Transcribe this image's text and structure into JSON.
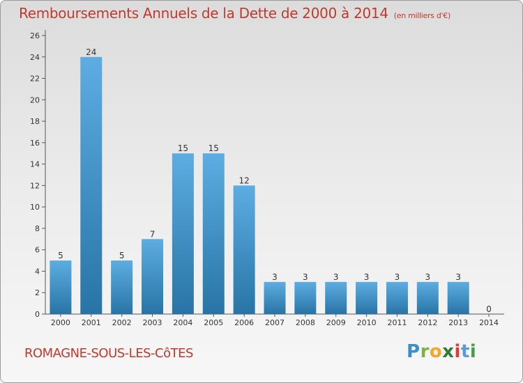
{
  "header": {
    "title": "Remboursements Annuels de la Dette de 2000 à 2014",
    "subtitle": "(en milliers d'€)"
  },
  "footer": {
    "commune": "ROMAGNE-SOUS-LES-CôTES",
    "brand": {
      "letters": [
        "P",
        "r",
        "o",
        "x",
        "i",
        "t",
        "i"
      ],
      "colors": [
        "#3c8ec9",
        "#7cb342",
        "#f5a623",
        "#2e7d32",
        "#e53935",
        "#5b9bd5",
        "#43a047"
      ]
    }
  },
  "chart_data": {
    "type": "bar",
    "title": "Remboursements Annuels de la Dette de 2000 à 2014",
    "subtitle": "(en milliers d'€)",
    "xlabel": "",
    "ylabel": "",
    "categories": [
      "2000",
      "2001",
      "2002",
      "2003",
      "2004",
      "2005",
      "2006",
      "2007",
      "2008",
      "2009",
      "2010",
      "2011",
      "2012",
      "2013",
      "2014"
    ],
    "values": [
      5,
      24,
      5,
      7,
      15,
      15,
      12,
      3,
      3,
      3,
      3,
      3,
      3,
      3,
      0
    ],
    "ylim": [
      0,
      26
    ],
    "yticks": [
      0,
      2,
      4,
      6,
      8,
      10,
      12,
      14,
      16,
      18,
      20,
      22,
      24,
      26
    ],
    "grid": false,
    "legend": "none",
    "colors": {
      "bar_top": "#5dade2",
      "bar_bottom": "#2874a6",
      "axis": "#555555",
      "text": "#333333"
    }
  }
}
